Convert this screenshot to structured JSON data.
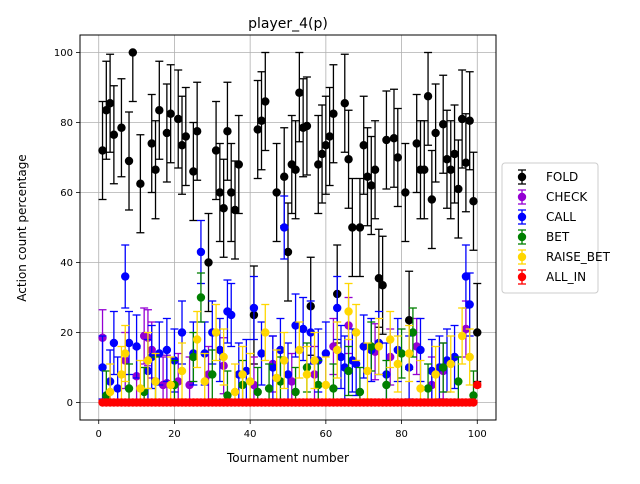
{
  "chart_data": {
    "type": "scatter",
    "title": "player_4(p)",
    "xlabel": "Tournament number",
    "ylabel": "Action count percentage",
    "xlim": [
      -4.95,
      104.95
    ],
    "ylim": [
      -5,
      105
    ],
    "xticks": [
      0,
      20,
      40,
      60,
      80,
      100
    ],
    "yticks": [
      0,
      20,
      40,
      60,
      80,
      100
    ],
    "grid": true,
    "legend_position": "center-right",
    "marker": "circle with vertical error bars",
    "series": [
      {
        "name": "FOLD",
        "color": "#000000",
        "x": [
          1,
          2,
          3,
          4,
          6,
          8,
          9,
          11,
          14,
          15,
          16,
          18,
          19,
          21,
          22,
          23,
          25,
          26,
          29,
          31,
          32,
          33,
          34,
          35,
          36,
          37,
          41,
          42,
          43,
          44,
          47,
          49,
          50,
          51,
          52,
          53,
          54,
          55,
          56,
          58,
          59,
          60,
          61,
          62,
          63,
          65,
          66,
          67,
          69,
          70,
          71,
          72,
          73,
          74,
          75,
          76,
          78,
          79,
          81,
          82,
          84,
          85,
          86,
          87,
          88,
          89,
          91,
          92,
          93,
          94,
          95,
          96,
          97,
          98,
          99,
          100
        ],
        "y": [
          72,
          83.5,
          85.5,
          76.5,
          78.5,
          69,
          100,
          62.5,
          74,
          66.5,
          83.5,
          77,
          82.5,
          81,
          73.5,
          76,
          66,
          77.5,
          40,
          72,
          60,
          55.5,
          77.5,
          60,
          55,
          68,
          25,
          78,
          80.5,
          86,
          60,
          64.5,
          43,
          68,
          66.5,
          88.5,
          78.5,
          79,
          27.5,
          68,
          71,
          73.5,
          76,
          82.5,
          31,
          85.5,
          69.5,
          50,
          50,
          73.5,
          64.5,
          62,
          66.5,
          35.5,
          33.5,
          75,
          75.5,
          70,
          60,
          23.5,
          74,
          66.5,
          66.5,
          87.5,
          58,
          77,
          79.5,
          69.5,
          66.5,
          71,
          61,
          81,
          68.5,
          80.5,
          57.5,
          20
        ]
      },
      {
        "name": "CHECK",
        "color": "#9400d3",
        "x": [
          1,
          7,
          10,
          12,
          13,
          14,
          17,
          18,
          21,
          24,
          29,
          33,
          41,
          46,
          51,
          57,
          62,
          66,
          73,
          77,
          84,
          88,
          91,
          97
        ],
        "y": [
          18.5,
          12,
          7.5,
          19,
          18.5,
          15,
          5,
          5.5,
          6,
          5,
          8,
          10.5,
          5,
          11,
          6,
          8,
          16,
          22,
          14.5,
          13,
          16,
          5,
          9,
          21
        ]
      },
      {
        "name": "CALL",
        "color": "#0000ff",
        "x": [
          1,
          3,
          4,
          5,
          7,
          8,
          10,
          13,
          14,
          16,
          18,
          20,
          22,
          25,
          27,
          28,
          30,
          32,
          34,
          35,
          37,
          39,
          41,
          43,
          46,
          48,
          49,
          50,
          52,
          54,
          56,
          58,
          60,
          63,
          64,
          65,
          67,
          68,
          70,
          72,
          74,
          76,
          79,
          82,
          85,
          88,
          90,
          92,
          94,
          97,
          98
        ],
        "y": [
          10,
          6,
          17,
          4,
          36,
          17,
          16,
          9,
          13,
          14,
          15,
          12,
          20,
          14,
          43,
          14,
          20,
          15,
          26,
          25,
          8,
          9,
          27,
          14,
          10,
          15,
          50,
          8,
          22,
          21,
          20,
          12,
          14,
          27,
          13,
          10,
          12,
          11,
          16,
          15,
          17,
          8,
          15,
          10,
          15,
          9,
          10,
          12,
          13,
          36,
          28
        ]
      },
      {
        "name": "BET",
        "color": "#008000",
        "x": [
          2,
          8,
          12,
          15,
          20,
          25,
          27,
          30,
          34,
          38,
          42,
          45,
          48,
          52,
          55,
          58,
          62,
          66,
          69,
          72,
          76,
          80,
          83,
          87,
          91,
          95,
          99
        ],
        "y": [
          2,
          4,
          3,
          6,
          5,
          13,
          30,
          8,
          2,
          5,
          3,
          4,
          6,
          3,
          10,
          5,
          4,
          9,
          3,
          16,
          5,
          14,
          20,
          4,
          10,
          6,
          2
        ]
      },
      {
        "name": "RAISE_BET",
        "color": "#ffd700",
        "x": [
          3,
          6,
          7,
          11,
          13,
          15,
          19,
          22,
          26,
          28,
          31,
          33,
          36,
          38,
          40,
          44,
          47,
          49,
          53,
          55,
          57,
          60,
          63,
          66,
          68,
          71,
          74,
          77,
          79,
          82,
          85,
          89,
          93,
          96,
          98
        ],
        "y": [
          3,
          8,
          14,
          4,
          12,
          6,
          5,
          9,
          18,
          6,
          20,
          13,
          3,
          8,
          6,
          20,
          7,
          12,
          15,
          8,
          12,
          5,
          15,
          26,
          20,
          9,
          16,
          18,
          11,
          14,
          4,
          8,
          11,
          19,
          13
        ]
      },
      {
        "name": "ALL_IN",
        "color": "#ff0000",
        "x": [
          1,
          2,
          3,
          4,
          5,
          6,
          7,
          8,
          9,
          10,
          11,
          12,
          13,
          14,
          15,
          16,
          17,
          18,
          19,
          20,
          21,
          22,
          23,
          24,
          25,
          26,
          27,
          28,
          29,
          30,
          31,
          32,
          33,
          34,
          35,
          36,
          37,
          38,
          39,
          40,
          41,
          42,
          43,
          44,
          45,
          46,
          47,
          48,
          49,
          50,
          51,
          52,
          53,
          54,
          55,
          56,
          57,
          58,
          59,
          60,
          61,
          62,
          63,
          64,
          65,
          66,
          67,
          68,
          69,
          70,
          71,
          72,
          73,
          74,
          75,
          76,
          77,
          78,
          79,
          80,
          81,
          82,
          83,
          84,
          85,
          86,
          87,
          88,
          89,
          90,
          91,
          92,
          93,
          94,
          95,
          96,
          97,
          98,
          99,
          100
        ],
        "y": [
          0,
          0,
          0,
          0,
          0,
          0,
          0,
          0,
          0,
          0,
          0,
          0,
          0,
          0,
          0,
          0,
          0,
          0,
          0,
          0,
          0,
          0,
          0,
          0,
          0,
          0,
          0,
          0,
          0,
          0,
          0,
          0,
          0,
          0,
          0,
          0,
          0,
          0,
          0,
          0,
          0,
          0,
          0,
          0,
          0,
          0,
          0,
          0,
          0,
          0,
          0,
          0,
          0,
          0,
          0,
          0,
          0,
          0,
          0,
          0,
          0,
          0,
          0,
          0,
          0,
          0,
          0,
          0,
          0,
          0,
          0,
          0,
          0,
          0,
          0,
          0,
          0,
          0,
          0,
          0,
          0,
          0,
          0,
          0,
          0,
          0,
          0,
          0,
          0,
          0,
          0,
          0,
          0,
          0,
          0,
          0,
          0,
          0,
          0,
          5
        ]
      }
    ]
  }
}
